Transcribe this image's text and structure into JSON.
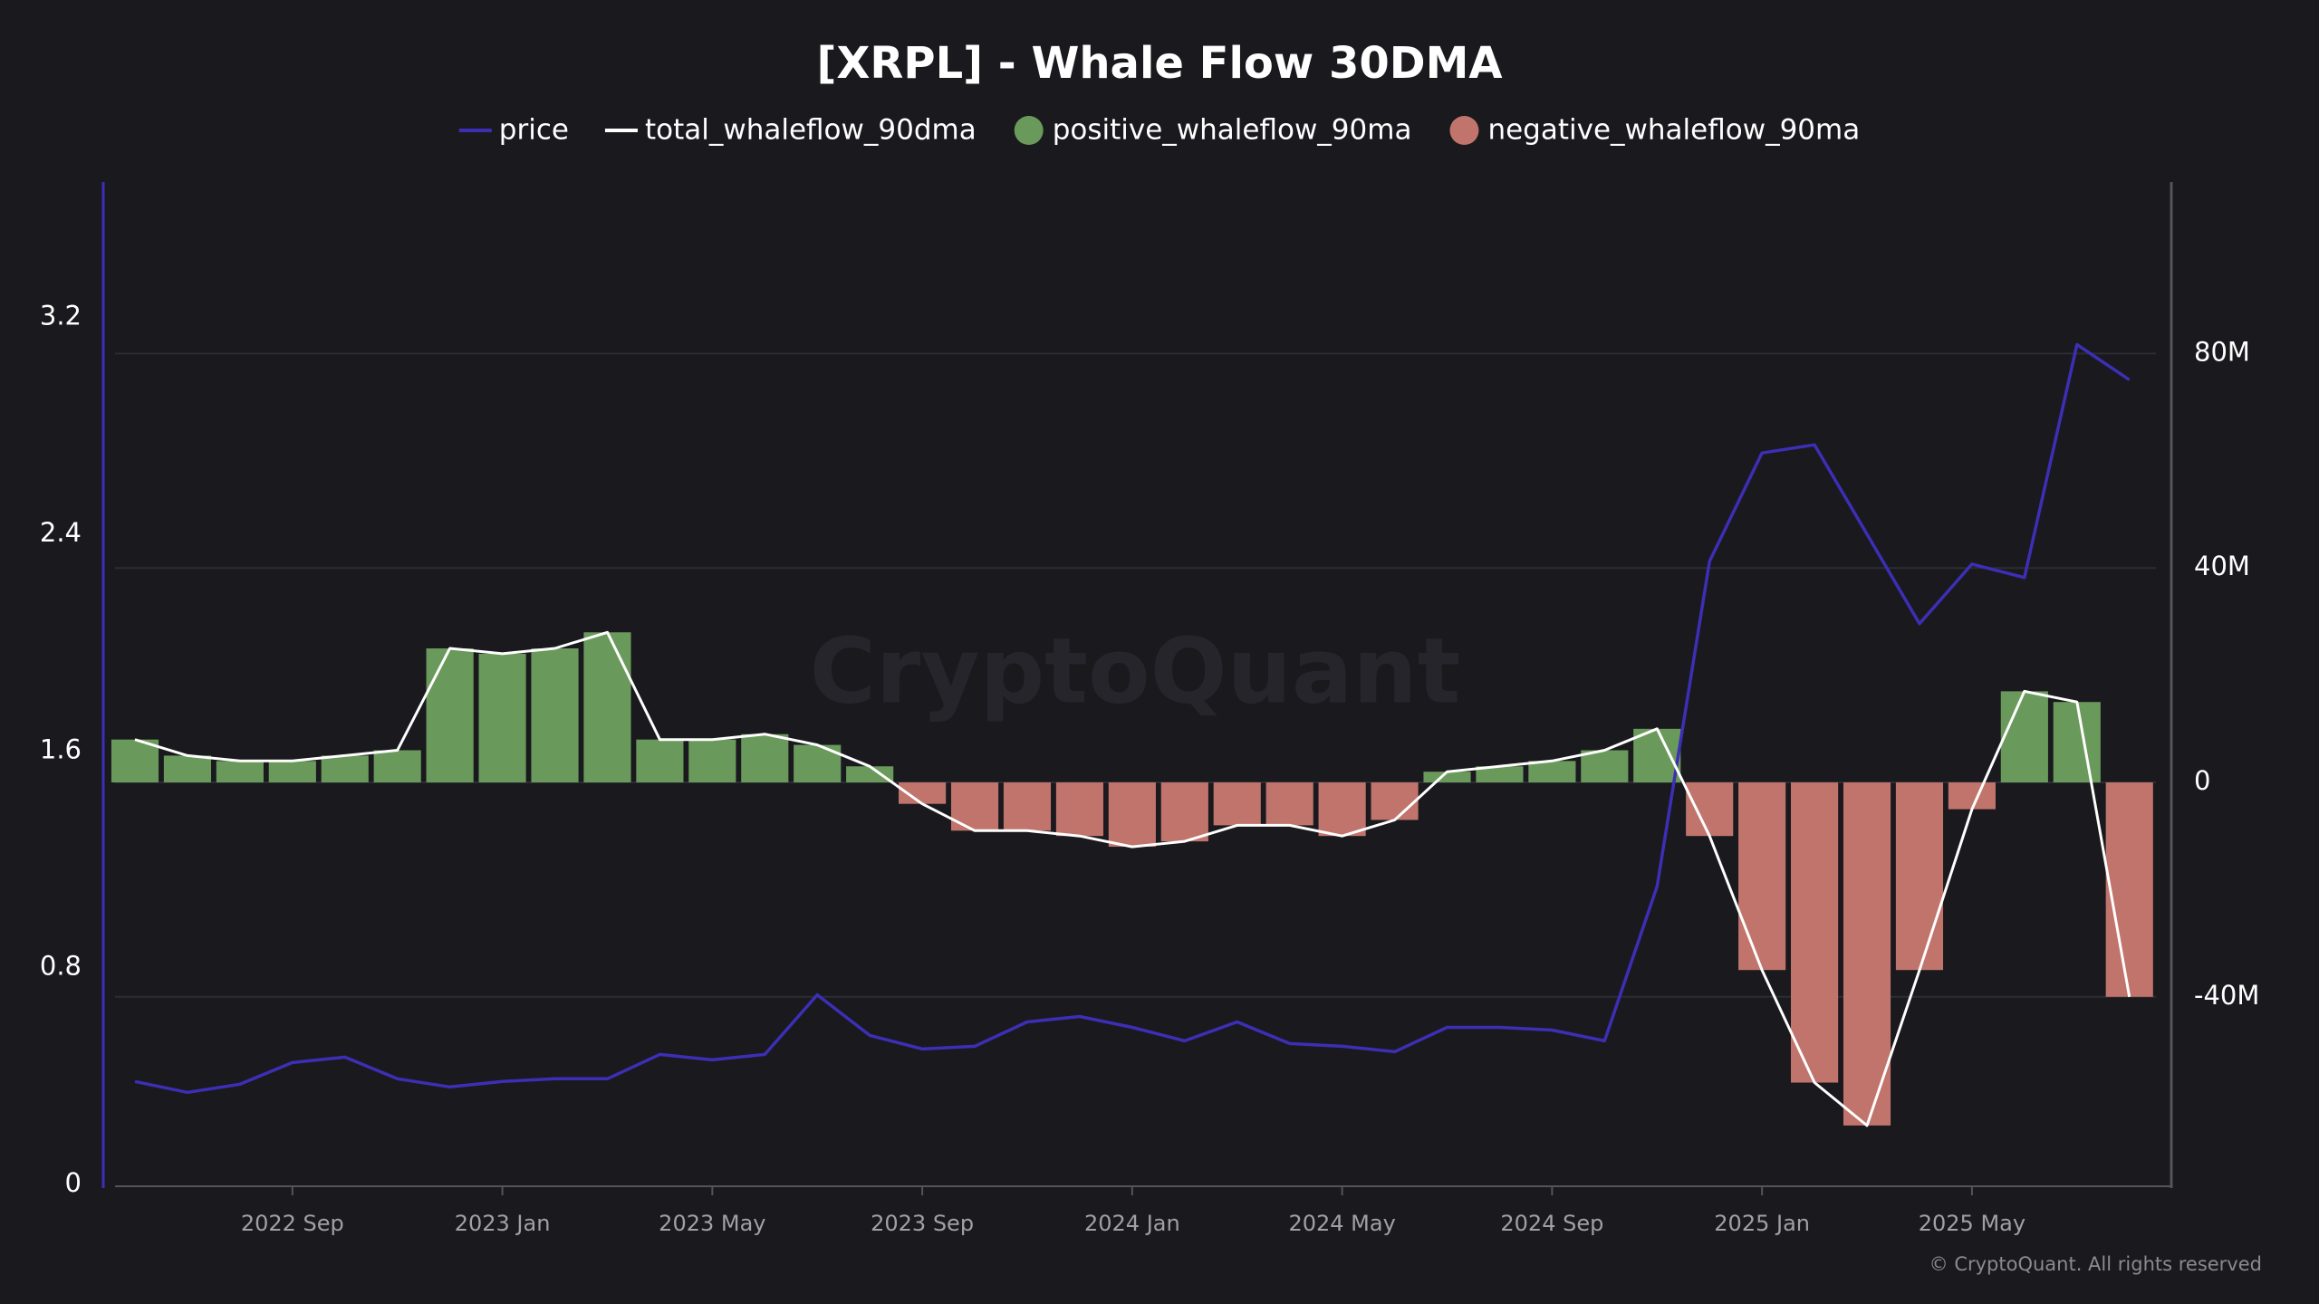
{
  "chart_data": {
    "type": "combo",
    "title": "[XRPL] - Whale Flow 30DMA",
    "watermark": "CryptoQuant",
    "copyright": "© CryptoQuant. All rights reserved",
    "x": [
      "2022 Jun",
      "2022 Jul",
      "2022 Aug",
      "2022 Sep",
      "2022 Oct",
      "2022 Nov",
      "2022 Dec",
      "2023 Jan",
      "2023 Feb",
      "2023 Mar",
      "2023 Apr",
      "2023 May",
      "2023 Jun",
      "2023 Jul",
      "2023 Aug",
      "2023 Sep",
      "2023 Oct",
      "2023 Nov",
      "2023 Dec",
      "2024 Jan",
      "2024 Feb",
      "2024 Mar",
      "2024 Apr",
      "2024 May",
      "2024 Jun",
      "2024 Jul",
      "2024 Aug",
      "2024 Sep",
      "2024 Oct",
      "2024 Nov",
      "2024 Dec",
      "2025 Jan",
      "2025 Feb",
      "2025 Mar",
      "2025 Apr",
      "2025 May",
      "2025 Jun",
      "2025 Jul",
      "2025 Aug"
    ],
    "xticks": [
      "2022 Sep",
      "2023 Jan",
      "2023 May",
      "2023 Sep",
      "2024 Jan",
      "2024 May",
      "2024 Sep",
      "2025 Jan",
      "2025 May"
    ],
    "ylim": [
      0,
      3.7
    ],
    "yticks": [
      0,
      0.8,
      1.6,
      2.4,
      3.2
    ],
    "y2lim": [
      -75000000,
      112000000
    ],
    "y2ticks": [
      {
        "value": -40000000,
        "label": "-40M"
      },
      0,
      {
        "value": 40000000,
        "label": "40M"
      },
      {
        "value": 80000000,
        "label": "80M"
      }
    ],
    "grid": true,
    "series": [
      {
        "name": "price",
        "type": "line",
        "axis": "y",
        "color": "#3d2fb5",
        "values": [
          0.38,
          0.34,
          0.37,
          0.45,
          0.47,
          0.39,
          0.36,
          0.38,
          0.39,
          0.39,
          0.48,
          0.46,
          0.48,
          0.7,
          0.55,
          0.5,
          0.51,
          0.6,
          0.62,
          0.58,
          0.53,
          0.6,
          0.52,
          0.51,
          0.49,
          0.58,
          0.58,
          0.57,
          0.53,
          1.1,
          2.3,
          2.7,
          2.73,
          2.4,
          2.07,
          2.29,
          2.24,
          3.1,
          2.97
        ]
      },
      {
        "name": "total_whaleflow_90dma",
        "type": "line",
        "axis": "y2",
        "color": "#ffffff",
        "values": [
          8000000,
          5000000,
          4000000,
          4000000,
          5000000,
          6000000,
          25000000,
          24000000,
          25000000,
          28000000,
          8000000,
          8000000,
          9000000,
          7000000,
          3000000,
          -4000000,
          -9000000,
          -9000000,
          -10000000,
          -12000000,
          -11000000,
          -8000000,
          -8000000,
          -10000000,
          -7000000,
          2000000,
          3000000,
          4000000,
          6000000,
          10000000,
          -10000000,
          -35000000,
          -56000000,
          -64000000,
          -35000000,
          -5000000,
          17000000,
          15000000,
          -40000000
        ]
      },
      {
        "name": "positive_whaleflow_90ma",
        "type": "bar",
        "axis": "y2",
        "color": "#6a9a5b",
        "values": [
          8000000,
          5000000,
          4000000,
          4000000,
          5000000,
          6000000,
          25000000,
          24000000,
          25000000,
          28000000,
          8000000,
          8000000,
          9000000,
          7000000,
          3000000,
          null,
          null,
          null,
          null,
          null,
          null,
          null,
          null,
          null,
          null,
          2000000,
          3000000,
          4000000,
          6000000,
          10000000,
          null,
          null,
          null,
          null,
          null,
          null,
          17000000,
          15000000,
          null
        ]
      },
      {
        "name": "negative_whaleflow_90ma",
        "type": "bar",
        "axis": "y2",
        "color": "#c0746c",
        "values": [
          null,
          null,
          null,
          null,
          null,
          null,
          null,
          null,
          null,
          null,
          null,
          null,
          null,
          null,
          null,
          -4000000,
          -9000000,
          -9000000,
          -10000000,
          -12000000,
          -11000000,
          -8000000,
          -8000000,
          -10000000,
          -7000000,
          null,
          null,
          null,
          null,
          null,
          -10000000,
          -35000000,
          -56000000,
          -64000000,
          -35000000,
          -5000000,
          null,
          null,
          -40000000
        ]
      }
    ]
  }
}
